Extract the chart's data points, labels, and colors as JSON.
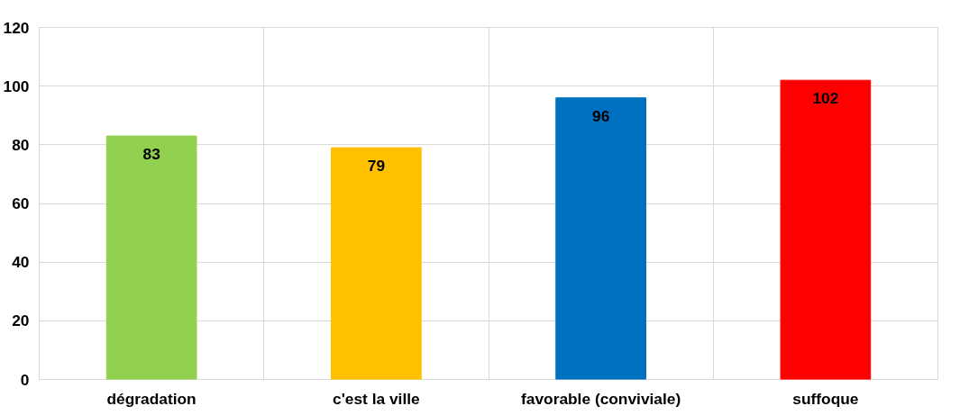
{
  "chart_data": {
    "type": "bar",
    "categories": [
      "dégradation",
      "c'est la ville",
      "favorable (conviviale)",
      "suffoque"
    ],
    "values": [
      83,
      79,
      96,
      102
    ],
    "colors": [
      "#92d050",
      "#ffc000",
      "#0070c0",
      "#ff0000"
    ],
    "ylim": [
      0,
      120
    ],
    "yticks": [
      0,
      20,
      40,
      60,
      80,
      100,
      120
    ],
    "grid": true,
    "data_labels": true
  }
}
